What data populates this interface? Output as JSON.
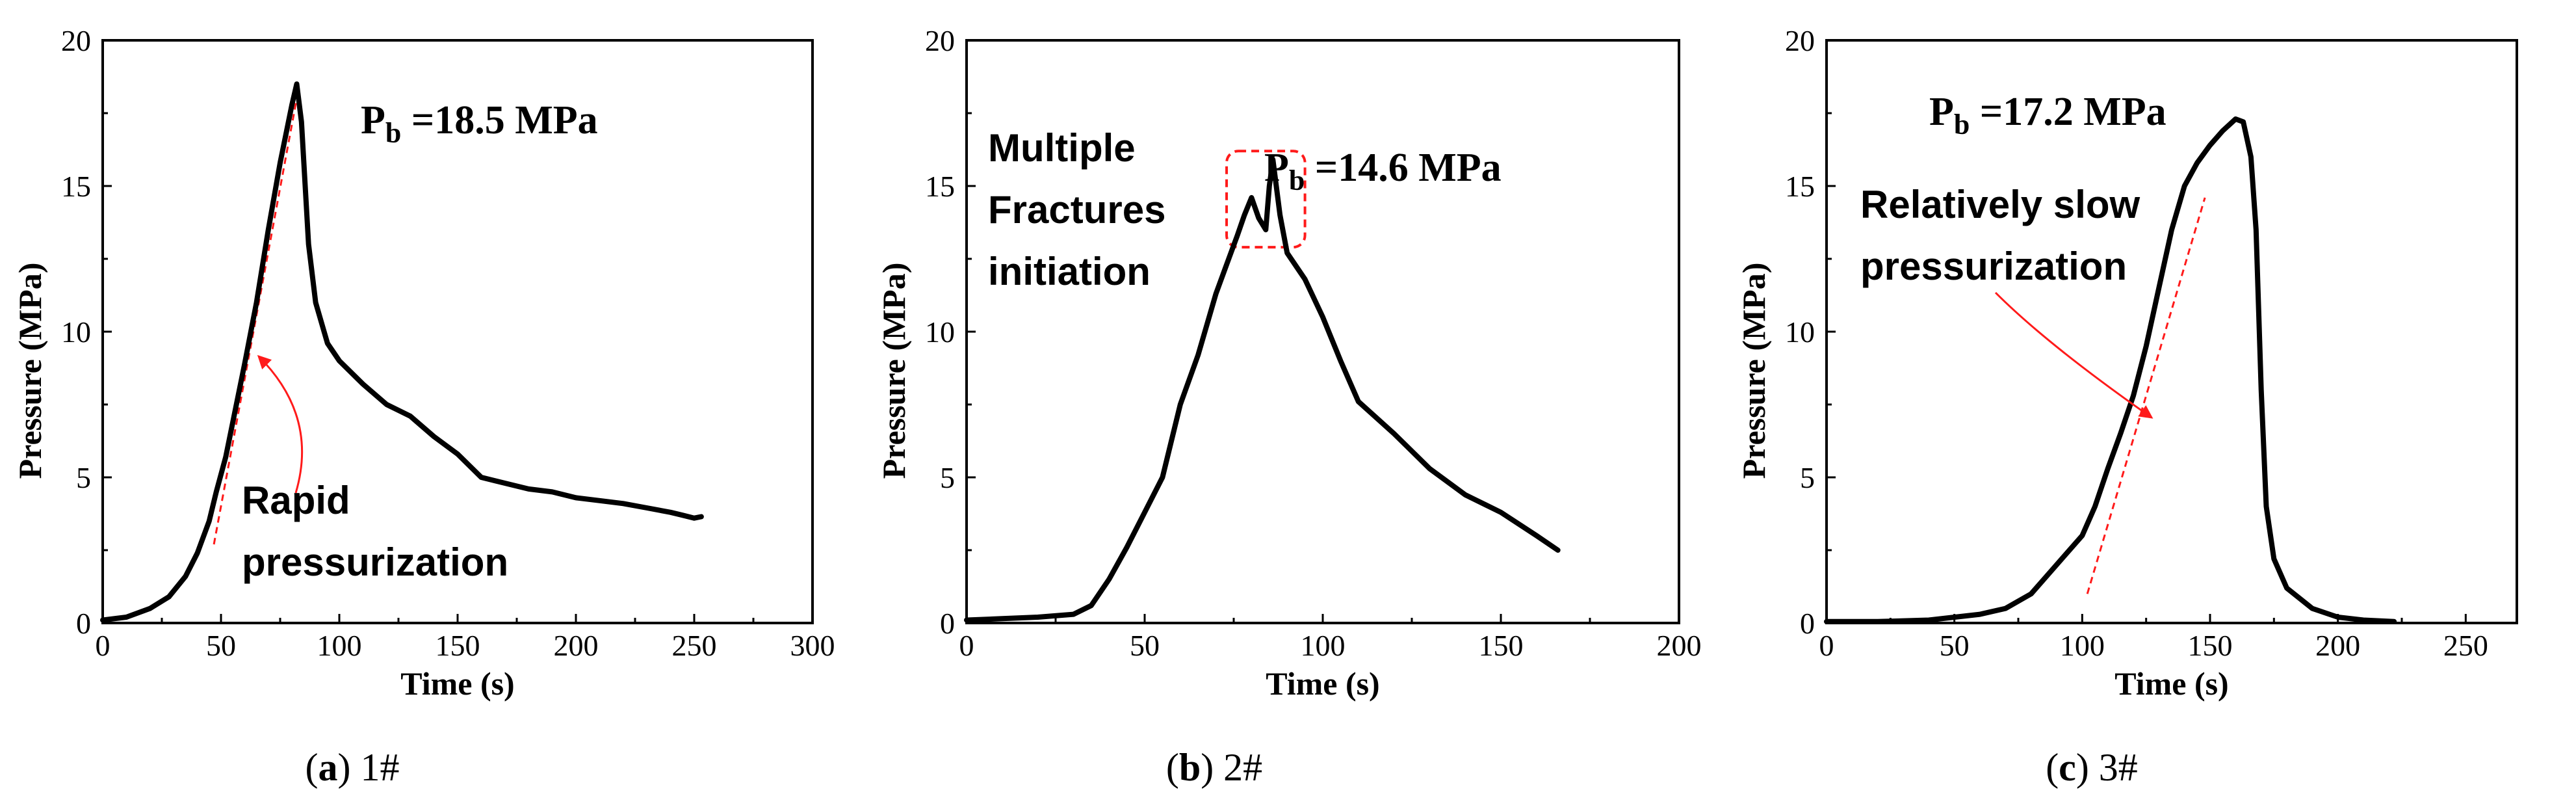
{
  "chart_data": [
    {
      "type": "line",
      "xlabel": "Time (s)",
      "ylabel": "Pressure (MPa)",
      "xlim": [
        0,
        300
      ],
      "ylim": [
        0,
        20
      ],
      "xticks": [
        0,
        50,
        100,
        150,
        200,
        250,
        300
      ],
      "yticks": [
        0,
        5,
        10,
        15,
        20
      ],
      "peak_label": {
        "prefix": "P",
        "sub": "b",
        "value": " =18.5 MPa"
      },
      "annotation_lines": [
        "Rapid",
        "pressurization"
      ],
      "caption": {
        "letter": "a",
        "sample": "1#"
      },
      "series": [
        {
          "name": "pressure",
          "x": [
            0,
            10,
            20,
            28,
            35,
            40,
            45,
            48,
            52,
            55,
            60,
            65,
            70,
            75,
            80,
            82,
            84,
            87,
            90,
            95,
            100,
            110,
            120,
            130,
            140,
            150,
            160,
            170,
            180,
            190,
            200,
            210,
            220,
            230,
            240,
            245,
            250,
            253
          ],
          "y": [
            0.1,
            0.2,
            0.5,
            0.9,
            1.6,
            2.4,
            3.5,
            4.5,
            5.7,
            6.9,
            8.9,
            11.0,
            13.5,
            15.8,
            17.8,
            18.5,
            17.2,
            13.0,
            11.0,
            9.6,
            9.0,
            8.2,
            7.5,
            7.1,
            6.4,
            5.8,
            5.0,
            4.8,
            4.6,
            4.5,
            4.3,
            4.2,
            4.1,
            3.95,
            3.8,
            3.7,
            3.6,
            3.65
          ]
        }
      ],
      "guide_line": {
        "x": [
          47,
          82
        ],
        "y": [
          2.7,
          18.0
        ]
      }
    },
    {
      "type": "line",
      "xlabel": "Time (s)",
      "ylabel": "Pressure (MPa)",
      "xlim": [
        0,
        200
      ],
      "ylim": [
        0,
        20
      ],
      "xticks": [
        0,
        50,
        100,
        150,
        200
      ],
      "yticks": [
        0,
        5,
        10,
        15,
        20
      ],
      "peak_label": {
        "prefix": "P",
        "sub": "b",
        "value": " =14.6 MPa"
      },
      "annotation_lines": [
        "Multiple",
        "Fractures",
        "initiation"
      ],
      "caption": {
        "letter": "b",
        "sample": "2#"
      },
      "series": [
        {
          "name": "pressure",
          "x": [
            0,
            10,
            20,
            30,
            35,
            40,
            45,
            50,
            55,
            60,
            65,
            70,
            73,
            76,
            78,
            80,
            82,
            84,
            85,
            86,
            88,
            90,
            95,
            100,
            105,
            110,
            120,
            130,
            140,
            150,
            160,
            166
          ],
          "y": [
            0.1,
            0.15,
            0.2,
            0.3,
            0.6,
            1.5,
            2.6,
            3.8,
            5.0,
            7.5,
            9.2,
            11.3,
            12.3,
            13.3,
            14.0,
            14.6,
            13.9,
            13.5,
            15.0,
            15.9,
            14.0,
            12.7,
            11.8,
            10.5,
            9.0,
            7.6,
            6.5,
            5.3,
            4.4,
            3.8,
            3.0,
            2.5
          ]
        }
      ],
      "highlight_box": {
        "x": [
          73,
          95
        ],
        "y": [
          12.9,
          16.2
        ]
      }
    },
    {
      "type": "line",
      "xlabel": "Time (s)",
      "ylabel": "Pressure (MPa)",
      "xlim": [
        0,
        270
      ],
      "ylim": [
        0,
        20
      ],
      "xticks": [
        0,
        50,
        100,
        150,
        200,
        250
      ],
      "yticks": [
        0,
        5,
        10,
        15,
        20
      ],
      "peak_label": {
        "prefix": "P",
        "sub": "b",
        "value": " =17.2 MPa"
      },
      "annotation_lines": [
        "Relatively slow",
        "pressurization"
      ],
      "caption": {
        "letter": "c",
        "sample": "3#"
      },
      "series": [
        {
          "name": "pressure",
          "x": [
            0,
            20,
            40,
            60,
            70,
            80,
            90,
            100,
            105,
            110,
            115,
            120,
            125,
            130,
            135,
            140,
            145,
            150,
            155,
            160,
            163,
            166,
            168,
            170,
            172,
            175,
            180,
            190,
            200,
            210,
            222
          ],
          "y": [
            0.05,
            0.05,
            0.1,
            0.3,
            0.5,
            1.0,
            2.0,
            3.0,
            4.0,
            5.3,
            6.5,
            7.8,
            9.5,
            11.5,
            13.5,
            15.0,
            15.8,
            16.4,
            16.9,
            17.3,
            17.2,
            16.0,
            13.5,
            8.0,
            4.0,
            2.2,
            1.2,
            0.5,
            0.2,
            0.1,
            0.05
          ]
        }
      ],
      "guide_line": {
        "x": [
          102,
          148
        ],
        "y": [
          1.0,
          14.6
        ]
      }
    }
  ]
}
